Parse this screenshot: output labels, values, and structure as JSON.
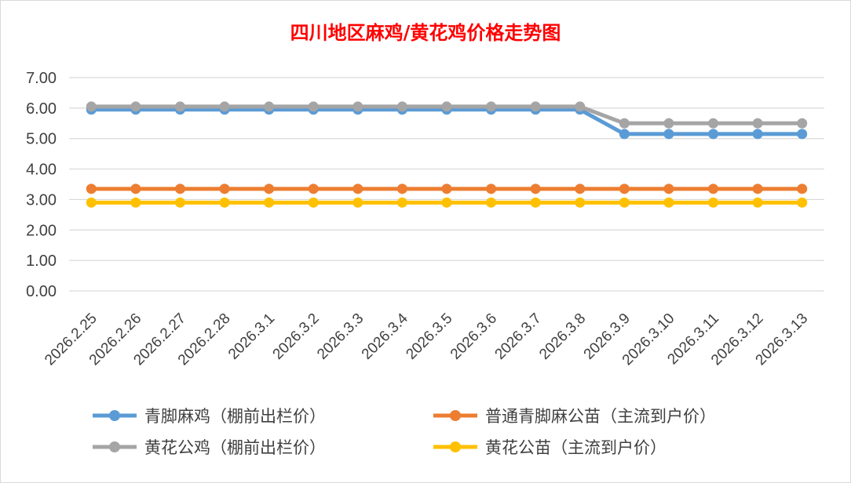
{
  "chart_data": {
    "type": "line",
    "title": "四川地区麻鸡/黄花鸡价格走势图",
    "xlabel": "",
    "ylabel": "",
    "categories": [
      "2026.2.25",
      "2026.2.26",
      "2026.2.27",
      "2026.2.28",
      "2026.3.1",
      "2026.3.2",
      "2026.3.3",
      "2026.3.4",
      "2026.3.5",
      "2026.3.6",
      "2026.3.7",
      "2026.3.8",
      "2026.3.9",
      "2026.3.10",
      "2026.3.11",
      "2026.3.12",
      "2026.3.13"
    ],
    "ylim": [
      0,
      7
    ],
    "yticks": [
      "0.00",
      "1.00",
      "2.00",
      "3.00",
      "4.00",
      "5.00",
      "6.00",
      "7.00"
    ],
    "grid": true,
    "legend_position": "bottom",
    "series": [
      {
        "name": "青脚麻鸡（棚前出栏价）",
        "color": "#5b9bd5",
        "values": [
          5.95,
          5.95,
          5.95,
          5.95,
          5.95,
          5.95,
          5.95,
          5.95,
          5.95,
          5.95,
          5.95,
          5.95,
          5.15,
          5.15,
          5.15,
          5.15,
          5.15
        ]
      },
      {
        "name": "普通青脚麻公苗（主流到户价）",
        "color": "#ed7d31",
        "values": [
          3.35,
          3.35,
          3.35,
          3.35,
          3.35,
          3.35,
          3.35,
          3.35,
          3.35,
          3.35,
          3.35,
          3.35,
          3.35,
          3.35,
          3.35,
          3.35,
          3.35
        ]
      },
      {
        "name": "黄花公鸡（棚前出栏价）",
        "color": "#a5a5a5",
        "values": [
          6.05,
          6.05,
          6.05,
          6.05,
          6.05,
          6.05,
          6.05,
          6.05,
          6.05,
          6.05,
          6.05,
          6.05,
          5.5,
          5.5,
          5.5,
          5.5,
          5.5
        ]
      },
      {
        "name": "黄花公苗（主流到户价）",
        "color": "#ffc000",
        "values": [
          2.9,
          2.9,
          2.9,
          2.9,
          2.9,
          2.9,
          2.9,
          2.9,
          2.9,
          2.9,
          2.9,
          2.9,
          2.9,
          2.9,
          2.9,
          2.9,
          2.9
        ]
      }
    ]
  }
}
